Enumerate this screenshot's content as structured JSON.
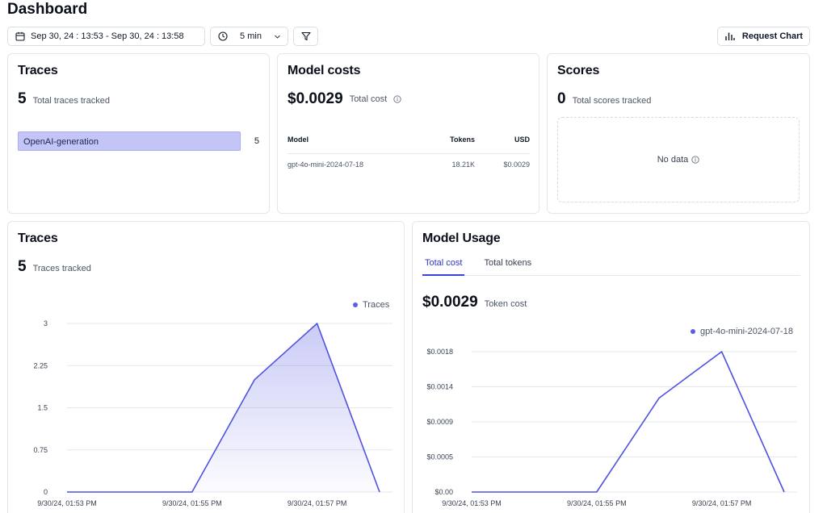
{
  "page": {
    "title": "Dashboard"
  },
  "toolbar": {
    "date_range": "Sep 30, 24 : 13:53 - Sep 30, 24 : 13:58",
    "interval": "5 min",
    "request_chart": "Request Chart"
  },
  "traces_card": {
    "title": "Traces",
    "total": "5",
    "total_label": "Total traces tracked",
    "items": [
      {
        "name": "OpenAI-generation",
        "count": "5"
      }
    ]
  },
  "model_costs": {
    "title": "Model costs",
    "total": "$0.0029",
    "total_label": "Total cost",
    "columns": [
      "Model",
      "Tokens",
      "USD"
    ],
    "rows": [
      {
        "model": "gpt-4o-mini-2024-07-18",
        "tokens": "18.21K",
        "usd": "$0.0029"
      }
    ]
  },
  "scores": {
    "title": "Scores",
    "total": "0",
    "total_label": "Total scores tracked",
    "empty": "No data"
  },
  "traces_chart": {
    "title": "Traces",
    "total": "5",
    "total_label": "Traces tracked"
  },
  "model_usage": {
    "title": "Model Usage",
    "tabs": [
      "Total cost",
      "Total tokens"
    ],
    "active_tab": "Total cost",
    "total": "$0.0029",
    "total_label": "Token cost"
  },
  "chart_data": [
    {
      "type": "area",
      "x": [
        "9/30/24, 01:53 PM",
        "9/30/24, 01:54 PM",
        "9/30/24, 01:55 PM",
        "9/30/24, 01:56 PM",
        "9/30/24, 01:57 PM",
        "9/30/24, 01:58 PM"
      ],
      "x_tick_labels": [
        "9/30/24, 01:53 PM",
        "9/30/24, 01:55 PM",
        "9/30/24, 01:57 PM"
      ],
      "series": [
        {
          "name": "Traces",
          "values": [
            0,
            0,
            0,
            2,
            3,
            0
          ]
        }
      ],
      "y_ticks": [
        "0",
        "0.75",
        "1.5",
        "2.25",
        "3"
      ],
      "ylim": [
        0,
        3
      ],
      "legend": "top-right",
      "grid": true,
      "color": "#4f52e0"
    },
    {
      "type": "line",
      "x": [
        "9/30/24, 01:53 PM",
        "9/30/24, 01:54 PM",
        "9/30/24, 01:55 PM",
        "9/30/24, 01:56 PM",
        "9/30/24, 01:57 PM",
        "9/30/24, 01:58 PM"
      ],
      "x_tick_labels": [
        "9/30/24, 01:53 PM",
        "9/30/24, 01:55 PM",
        "9/30/24, 01:57 PM"
      ],
      "series": [
        {
          "name": "gpt-4o-mini-2024-07-18",
          "values": [
            0,
            0,
            0,
            0.00122,
            0.00182,
            0
          ]
        }
      ],
      "y_ticks": [
        "$0.00",
        "$0.0005",
        "$0.0009",
        "$0.0014",
        "$0.0018"
      ],
      "ylim": [
        0,
        0.00182
      ],
      "legend": "top-right",
      "grid": true,
      "color": "#4f52e0"
    }
  ]
}
